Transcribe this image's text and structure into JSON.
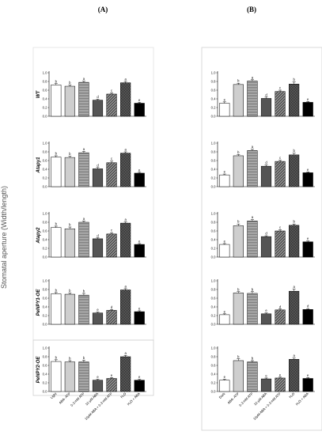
{
  "y_axis_label": "Stomatal aperture (Width/length)",
  "chart_data": {
    "type": "bar",
    "ylim": [
      0,
      1.0
    ],
    "yticks": [
      "0.0",
      "0.2",
      "0.4",
      "0.6",
      "0.8",
      "1.0"
    ],
    "columns": [
      {
        "label": "(A)",
        "categories": [
          "Light",
          "ABA- ATP",
          "0.3 mM ATP",
          "10 μM ABA",
          "10μM ABA + 0.3 mM ATP",
          "H₂O",
          "H₂O + ABA"
        ]
      },
      {
        "label": "(B)",
        "categories": [
          "Dark",
          "ABA- ATP",
          "0.3 mM ATP",
          "10 μM ABA",
          "10μM ABA + 0.3 mM ATP",
          "H₂O",
          "H₂O + ABA"
        ]
      }
    ],
    "rows": [
      {
        "label": "WT",
        "A": {
          "values": [
            0.72,
            0.69,
            0.78,
            0.37,
            0.51,
            0.77,
            0.3
          ],
          "errors": [
            0.03,
            0.03,
            0.03,
            0.02,
            0.03,
            0.03,
            0.02
          ],
          "letters": [
            "b",
            "b",
            "a",
            "d",
            "c",
            "a",
            "e"
          ]
        },
        "B": {
          "values": [
            0.3,
            0.73,
            0.81,
            0.41,
            0.57,
            0.74,
            0.32
          ],
          "errors": [
            0.03,
            0.03,
            0.03,
            0.03,
            0.03,
            0.05,
            0.02
          ],
          "letters": [
            "e",
            "b",
            "a",
            "d",
            "c",
            "b",
            "e"
          ]
        }
      },
      {
        "label": "Atapy1",
        "A": {
          "values": [
            0.68,
            0.67,
            0.78,
            0.41,
            0.55,
            0.77,
            0.31
          ],
          "errors": [
            0.03,
            0.03,
            0.03,
            0.03,
            0.04,
            0.03,
            0.02
          ],
          "letters": [
            "b",
            "b",
            "a",
            "d",
            "c",
            "a",
            "e"
          ]
        },
        "B": {
          "values": [
            0.27,
            0.71,
            0.83,
            0.47,
            0.58,
            0.73,
            0.32
          ],
          "errors": [
            0.02,
            0.03,
            0.03,
            0.03,
            0.03,
            0.04,
            0.02
          ],
          "letters": [
            "e",
            "b",
            "a",
            "d",
            "c",
            "b",
            "e"
          ]
        }
      },
      {
        "label": "Atapy2",
        "A": {
          "values": [
            0.68,
            0.65,
            0.8,
            0.42,
            0.53,
            0.78,
            0.29
          ],
          "errors": [
            0.03,
            0.04,
            0.03,
            0.02,
            0.03,
            0.03,
            0.02
          ],
          "letters": [
            "b",
            "b",
            "a",
            "d",
            "c",
            "a",
            "e"
          ]
        },
        "B": {
          "values": [
            0.29,
            0.72,
            0.83,
            0.47,
            0.6,
            0.73,
            0.35
          ],
          "errors": [
            0.02,
            0.04,
            0.03,
            0.02,
            0.03,
            0.03,
            0.02
          ],
          "letters": [
            "e",
            "b",
            "a",
            "d",
            "c",
            "b",
            "e"
          ]
        }
      },
      {
        "label": "PeNPY1-OE",
        "A": {
          "values": [
            0.7,
            0.69,
            0.67,
            0.26,
            0.32,
            0.79,
            0.29
          ],
          "errors": [
            0.03,
            0.03,
            0.04,
            0.02,
            0.02,
            0.03,
            0.02
          ],
          "letters": [
            "b",
            "b",
            "b",
            "e",
            "d",
            "a",
            "e"
          ]
        },
        "B": {
          "values": [
            0.22,
            0.72,
            0.71,
            0.24,
            0.33,
            0.76,
            0.34
          ],
          "errors": [
            0.02,
            0.03,
            0.04,
            0.02,
            0.02,
            0.05,
            0.02
          ],
          "letters": [
            "e",
            "b",
            "b",
            "e",
            "d",
            "a",
            "d"
          ]
        }
      },
      {
        "label": "PeNPY2-OE",
        "A": {
          "values": [
            0.69,
            0.68,
            0.68,
            0.26,
            0.3,
            0.8,
            0.26
          ],
          "errors": [
            0.04,
            0.03,
            0.04,
            0.02,
            0.02,
            0.03,
            0.02
          ],
          "letters": [
            "b",
            "b",
            "b",
            "e",
            "e",
            "a",
            "e"
          ]
        },
        "B": {
          "values": [
            0.26,
            0.71,
            0.68,
            0.29,
            0.31,
            0.74,
            0.3
          ],
          "errors": [
            0.02,
            0.04,
            0.03,
            0.02,
            0.02,
            0.03,
            0.02
          ],
          "letters": [
            "e",
            "b",
            "b",
            "e",
            "e",
            "a",
            "e"
          ]
        }
      }
    ],
    "bar_styles": [
      "white",
      "light-dots",
      "horizontal-lines",
      "dark-gray",
      "diagonal-hatch",
      "checker",
      "black"
    ]
  }
}
